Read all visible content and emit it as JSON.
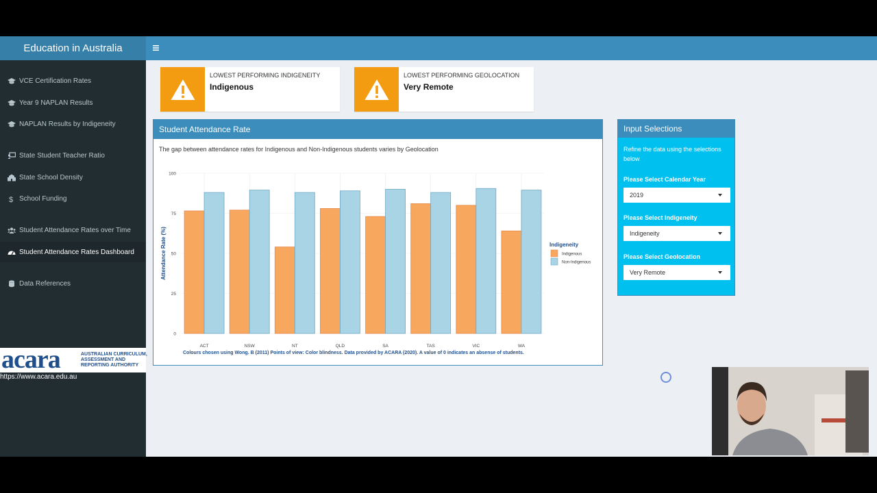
{
  "app": {
    "title": "Education in Australia"
  },
  "sidebar": {
    "items": [
      {
        "label": "VCE Certification Rates",
        "icon": "graduation-cap-icon"
      },
      {
        "label": "Year 9 NAPLAN Results",
        "icon": "graduation-cap-icon"
      },
      {
        "label": "NAPLAN Results by Indigeneity",
        "icon": "graduation-cap-icon"
      },
      {
        "label": "State Student Teacher Ratio",
        "icon": "chalkboard-teacher-icon"
      },
      {
        "label": "State School Density",
        "icon": "school-icon"
      },
      {
        "label": "School Funding",
        "icon": "dollar-icon"
      },
      {
        "label": "Student Attendance Rates over Time",
        "icon": "users-icon"
      },
      {
        "label": "Student Attendance Rates Dashboard",
        "icon": "dashboard-icon"
      },
      {
        "label": "Data References",
        "icon": "database-icon"
      }
    ],
    "acara": {
      "logo": "acara",
      "tagline": "AUSTRALIAN CURRICULUM, ASSESSMENT AND REPORTING AUTHORITY",
      "url": "https://www.acara.edu.au"
    }
  },
  "infoboxes": [
    {
      "label": "LOWEST PERFORMING INDIGENEITY",
      "value": "Indigenous",
      "icon": "warning-icon"
    },
    {
      "label": "LOWEST PERFORMING GEOLOCATION",
      "value": "Very Remote",
      "icon": "warning-icon"
    }
  ],
  "attendance_box": {
    "title": "Student Attendance Rate",
    "description": "The gap between attendance rates for Indigenous and Non-Indigenous students varies by Geolocation",
    "caption": "Colours chosen using Wong. B (2011) Points of view: Color blindness. Data provided by ACARA (2020). A value of 0 indicates an absense of students."
  },
  "input_box": {
    "title": "Input Selections",
    "help": "Refine the data using the selections below",
    "year_label": "Please Select Calendar Year",
    "year_value": "2019",
    "indigeneity_label": "Please Select Indigeneity",
    "indigeneity_value": "Indigeneity",
    "geolocation_label": "Please Select Geolocation",
    "geolocation_value": "Very Remote"
  },
  "chart_data": {
    "type": "bar",
    "categories": [
      "ACT",
      "NSW",
      "NT",
      "QLD",
      "SA",
      "TAS",
      "VIC",
      "WA"
    ],
    "series": [
      {
        "name": "Indigenous",
        "color": "#f7a75e",
        "values": [
          76.5,
          77,
          54,
          78,
          73,
          81,
          80,
          64
        ]
      },
      {
        "name": "Non-Indigenous",
        "color": "#a9d4e6",
        "values": [
          88,
          89.5,
          88,
          89,
          90,
          88,
          90.5,
          89.5
        ]
      }
    ],
    "ylabel": "Attendance Rate (%)",
    "xlabel": "",
    "yticks": [
      0,
      25,
      50,
      75,
      100
    ],
    "ylim": [
      0,
      100
    ],
    "legend_title": "Indigeneity",
    "legend_position": "right",
    "grid": true
  }
}
